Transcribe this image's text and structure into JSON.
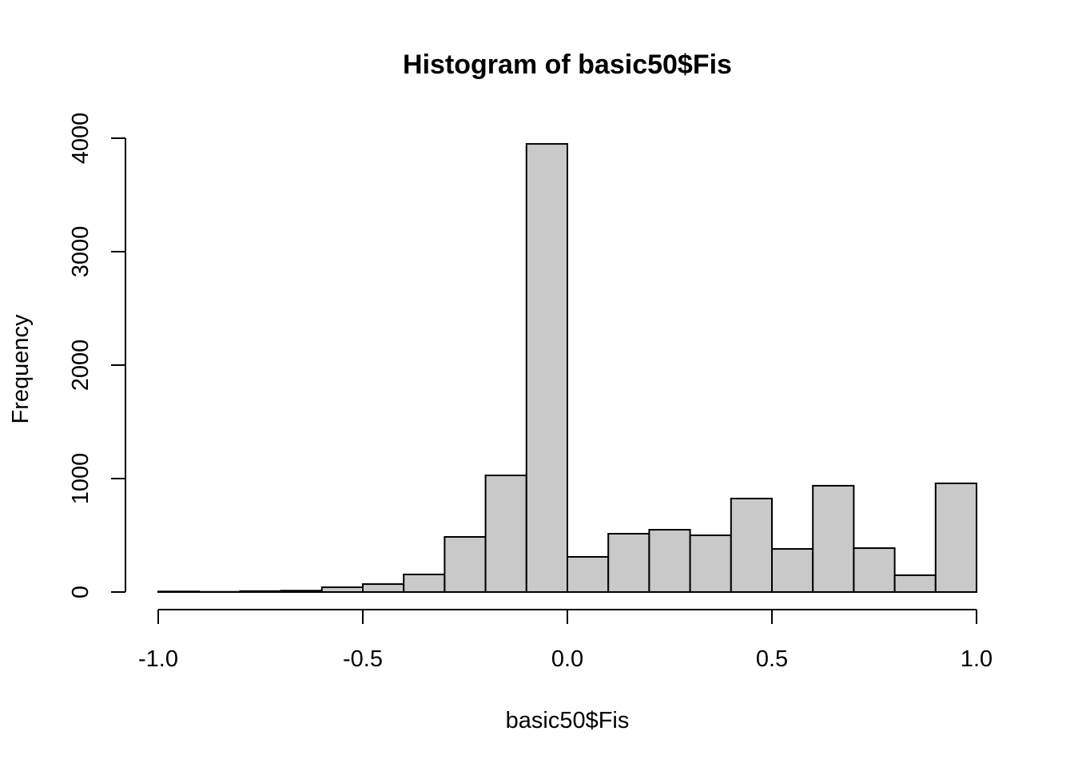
{
  "chart_data": {
    "type": "histogram",
    "title": "Histogram of basic50$Fis",
    "xlabel": "basic50$Fis",
    "ylabel": "Frequency",
    "bins": [
      -1.0,
      -0.9,
      -0.8,
      -0.7,
      -0.6,
      -0.5,
      -0.4,
      -0.3,
      -0.2,
      -0.1,
      0.0,
      0.1,
      0.2,
      0.3,
      0.4,
      0.5,
      0.6,
      0.7,
      0.8,
      0.9,
      1.0
    ],
    "counts": [
      5,
      2,
      8,
      12,
      42,
      70,
      155,
      486,
      1028,
      3950,
      310,
      514,
      549,
      500,
      824,
      380,
      937,
      387,
      148,
      958
    ],
    "color": "#c9c9c9",
    "xlim": [
      -1,
      1
    ],
    "ylim": [
      0,
      4000
    ],
    "xticks": [
      {
        "value": -1,
        "label": "-1.0"
      },
      -0.5,
      {
        "value": 0,
        "label": "0.0"
      },
      0.5,
      {
        "value": 1,
        "label": "1.0"
      }
    ],
    "yticks": [
      0,
      1000,
      2000,
      3000,
      4000
    ]
  }
}
